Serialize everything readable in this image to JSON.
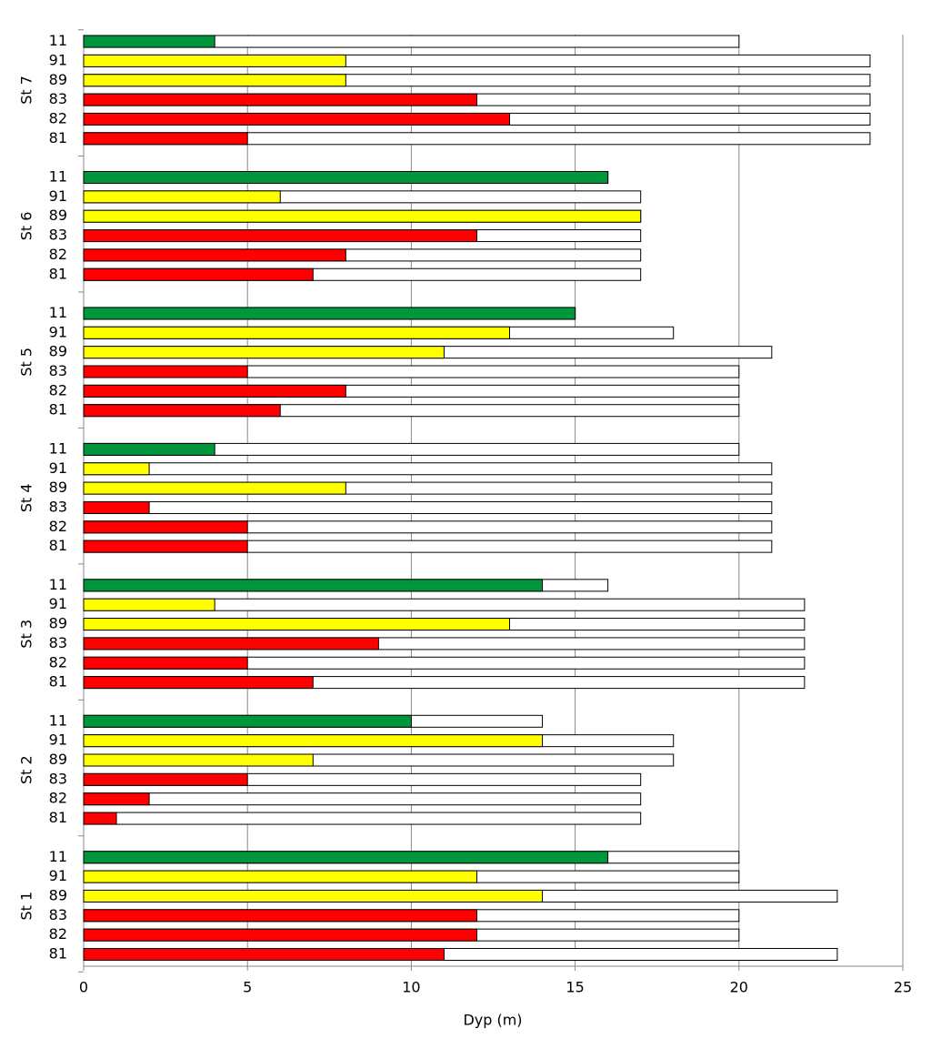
{
  "chart_data": {
    "type": "bar",
    "orientation": "horizontal",
    "xlabel": "Dyp (m)",
    "xlim": [
      0,
      25
    ],
    "xticks": [
      0,
      5,
      10,
      15,
      20,
      25
    ],
    "grid": true,
    "categories": [
      "81",
      "82",
      "83",
      "89",
      "91",
      "11"
    ],
    "colors": [
      "#ff0000",
      "#ff0000",
      "#ff0000",
      "#ffff00",
      "#ffff00",
      "#00963c"
    ],
    "total_color": "#ffffff",
    "groups": [
      {
        "name": "St 1",
        "values": [
          11,
          12,
          12,
          14,
          12,
          16
        ],
        "totals": [
          23,
          20,
          20,
          23,
          20,
          20
        ]
      },
      {
        "name": "St 2",
        "values": [
          1,
          2,
          5,
          7,
          14,
          10
        ],
        "totals": [
          17,
          17,
          17,
          18,
          18,
          14
        ]
      },
      {
        "name": "St 3",
        "values": [
          7,
          5,
          9,
          13,
          4,
          14
        ],
        "totals": [
          22,
          22,
          22,
          22,
          22,
          16
        ]
      },
      {
        "name": "St 4",
        "values": [
          5,
          5,
          2,
          8,
          2,
          4
        ],
        "totals": [
          21,
          21,
          21,
          21,
          21,
          20
        ]
      },
      {
        "name": "St 5",
        "values": [
          6,
          8,
          5,
          11,
          13,
          15
        ],
        "totals": [
          20,
          20,
          20,
          21,
          18,
          15
        ]
      },
      {
        "name": "St 6",
        "values": [
          7,
          8,
          12,
          17,
          6,
          16
        ],
        "totals": [
          17,
          17,
          17,
          17,
          17,
          16
        ]
      },
      {
        "name": "St 7",
        "values": [
          5,
          13,
          12,
          8,
          8,
          4
        ],
        "totals": [
          24,
          24,
          24,
          24,
          24,
          20
        ]
      }
    ]
  }
}
